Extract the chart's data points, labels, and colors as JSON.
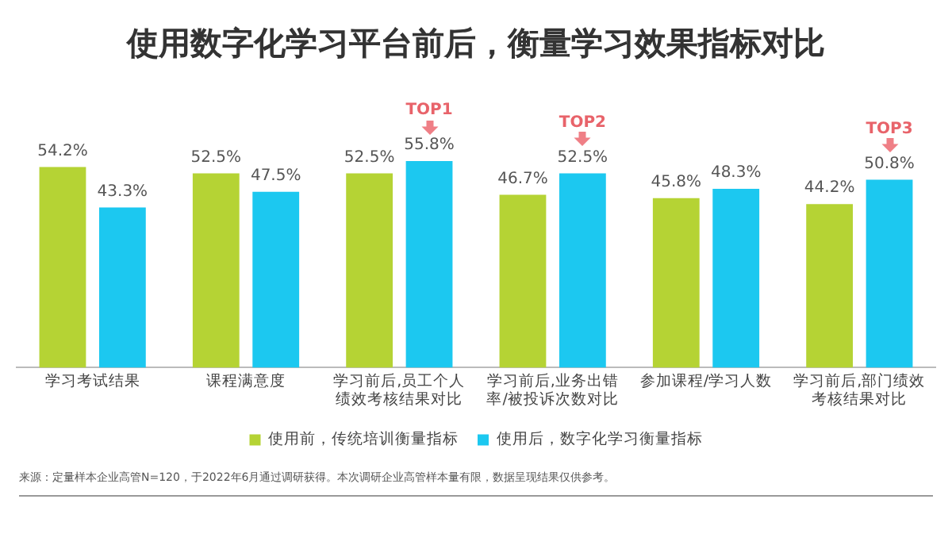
{
  "chart_data": {
    "type": "bar",
    "title": "使用数字化学习平台前后，衡量学习效果指标对比",
    "categories": [
      "学习考试结果",
      "课程满意度",
      "学习前后,员工个人绩效考核结果对比",
      "学习前后,业务出错率/被投诉次数对比",
      "参加课程/学习人数",
      "学习前后,部门绩效考核结果对比"
    ],
    "series": [
      {
        "name": "使用前，传统培训衡量指标",
        "color": "#b5d334",
        "values": [
          54.2,
          52.5,
          52.5,
          46.7,
          45.8,
          44.2
        ],
        "value_labels": [
          "54.2%",
          "52.5%",
          "52.5%",
          "46.7%",
          "45.8%",
          "44.2%"
        ]
      },
      {
        "name": "使用后，数字化学习衡量指标",
        "color": "#1cc8f0",
        "values": [
          43.3,
          47.5,
          55.8,
          52.5,
          48.3,
          50.8
        ],
        "value_labels": [
          "43.3%",
          "47.5%",
          "55.8%",
          "52.5%",
          "48.3%",
          "50.8%"
        ]
      }
    ],
    "legend": "bottom",
    "grid": false,
    "annotations": [
      {
        "text": "TOP1",
        "x": "学习前后,员工个人绩效考核结果对比",
        "y": 55.8
      },
      {
        "text": "TOP2",
        "x": "学习前后,业务出错率/被投诉次数对比",
        "y": 52.5
      },
      {
        "text": "TOP3",
        "x": "学习前后,部门绩效考核结果对比",
        "y": 50.8
      },
      "来源：定量样本企业高管N=120，于2022年6月通过调研获得。本次调研企业高管样本量有限，数据呈现结果仅供参考。"
    ]
  }
}
